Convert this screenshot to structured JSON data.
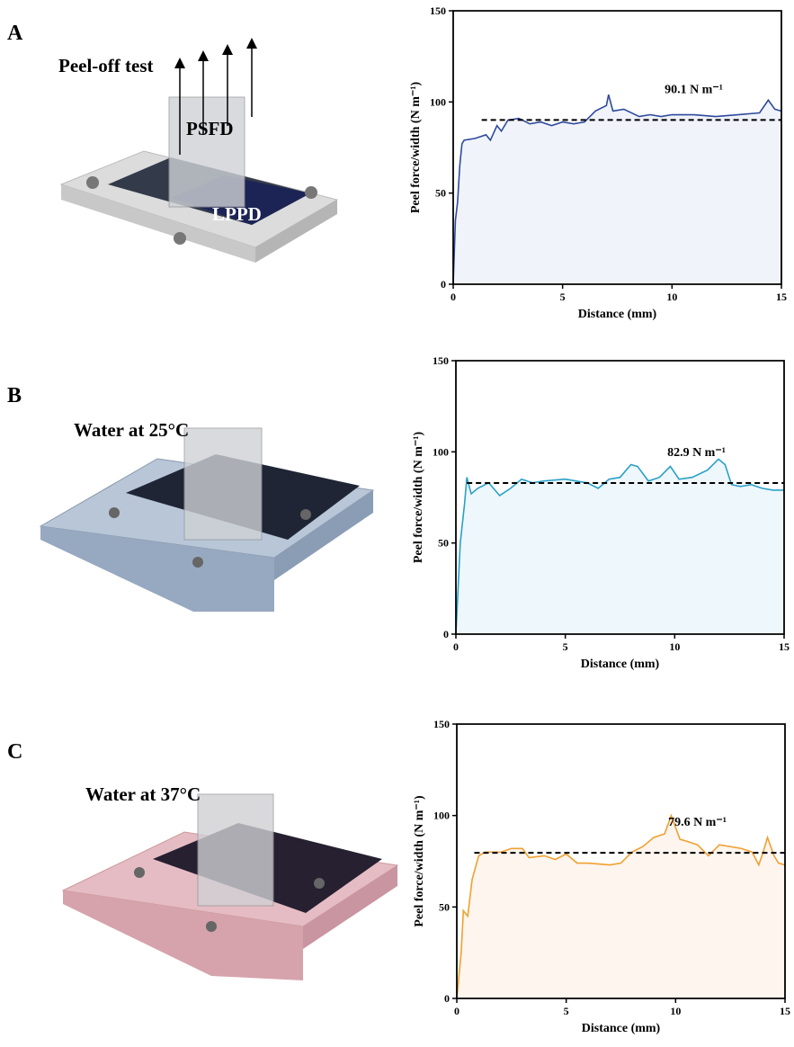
{
  "panels": [
    {
      "label": "A",
      "caption": "Peel-off test",
      "film": "PSFD",
      "substrate": "LPPD"
    },
    {
      "label": "B",
      "caption": "Water at 25°C"
    },
    {
      "label": "C",
      "caption": "Water at 37°C"
    }
  ],
  "chart_data": [
    {
      "type": "area",
      "color": "#2f4a9c",
      "fill": "#f1f3fb",
      "x_label": "Distance (mm)",
      "y_label": "Peel force/width (N m⁻¹)",
      "xlim": [
        0,
        15
      ],
      "ylim": [
        0,
        150
      ],
      "xticks": [
        0,
        5,
        10,
        15
      ],
      "yticks": [
        0,
        50,
        100,
        150
      ],
      "x": [
        0,
        0.1,
        0.2,
        0.3,
        0.4,
        0.5,
        1.0,
        1.5,
        1.7,
        2.0,
        2.2,
        2.5,
        3,
        3.5,
        4,
        4.5,
        5,
        5.5,
        6,
        6.5,
        7,
        7.1,
        7.3,
        7.8,
        8.5,
        9,
        9.5,
        10,
        11,
        12,
        13,
        14,
        14.4,
        14.7,
        15
      ],
      "values": [
        0,
        35,
        45,
        65,
        77,
        79,
        80,
        82,
        79,
        87,
        84,
        90,
        91,
        88,
        89,
        87,
        89,
        88,
        89,
        95,
        98,
        104,
        95,
        96,
        92,
        93,
        92,
        93,
        93,
        92,
        93,
        94,
        101,
        96,
        95
      ],
      "mean": {
        "value": 90.1,
        "x": [
          1.3,
          15
        ],
        "label": "90.1 N m⁻¹"
      }
    },
    {
      "type": "area",
      "color": "#2aa0c8",
      "fill": "#eef7fc",
      "x_label": "Distance (mm)",
      "y_label": "Peel force/width (N m⁻¹)",
      "xlim": [
        0,
        15
      ],
      "ylim": [
        0,
        150
      ],
      "xticks": [
        0,
        5,
        10,
        15
      ],
      "yticks": [
        0,
        50,
        100,
        150
      ],
      "x": [
        0,
        0.2,
        0.4,
        0.5,
        0.7,
        1,
        1.5,
        2,
        2.5,
        3,
        3.5,
        4,
        5,
        6,
        6.5,
        7,
        7.5,
        8,
        8.3,
        8.8,
        9.3,
        9.8,
        10.2,
        10.8,
        11.5,
        12,
        12.3,
        12.6,
        13,
        13.5,
        14,
        14.5,
        15
      ],
      "values": [
        0,
        50,
        72,
        86,
        77,
        80,
        83,
        76,
        80,
        85,
        83,
        84,
        85,
        83,
        80,
        85,
        86,
        93,
        92,
        84,
        86,
        92,
        85,
        86,
        90,
        96,
        93,
        82,
        81,
        82,
        80,
        79,
        79
      ],
      "mean": {
        "value": 82.9,
        "x": [
          0.5,
          15
        ],
        "label": "82.9 N m⁻¹"
      }
    },
    {
      "type": "area",
      "color": "#f0a030",
      "fill": "#fdf5ee",
      "x_label": "Distance (mm)",
      "y_label": "Peel force/width (N m⁻¹)",
      "xlim": [
        0,
        15
      ],
      "ylim": [
        0,
        150
      ],
      "xticks": [
        0,
        5,
        10,
        15
      ],
      "yticks": [
        0,
        50,
        100,
        150
      ],
      "x": [
        0,
        0.2,
        0.3,
        0.5,
        0.7,
        1,
        1.3,
        2,
        2.5,
        3,
        3.3,
        4,
        4.5,
        5,
        5.5,
        6,
        7,
        7.5,
        8,
        8.5,
        9,
        9.5,
        9.8,
        10.2,
        10.5,
        11,
        11.5,
        12,
        13,
        13.5,
        13.8,
        14,
        14.2,
        14.5,
        14.7,
        15
      ],
      "values": [
        0,
        25,
        48,
        45,
        65,
        78,
        80,
        80,
        82,
        82,
        77,
        78,
        76,
        79,
        74,
        74,
        73,
        74,
        80,
        83,
        88,
        90,
        100,
        87,
        86,
        84,
        78,
        84,
        82,
        80,
        73,
        80,
        88,
        78,
        74,
        73
      ],
      "mean": {
        "value": 79.6,
        "x": [
          0.8,
          15
        ],
        "label": "79.6 N m⁻¹"
      }
    }
  ]
}
